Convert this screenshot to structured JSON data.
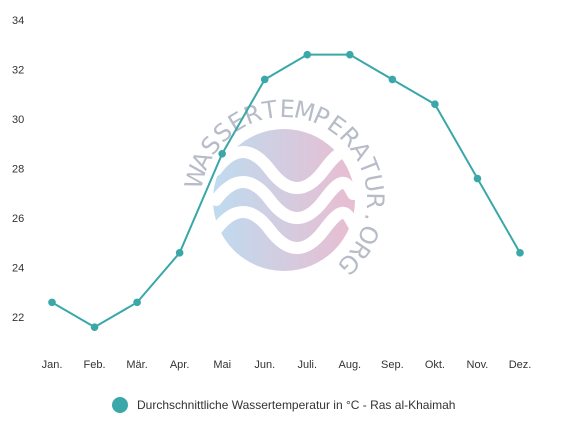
{
  "chart_data": {
    "type": "line",
    "categories": [
      "Jan.",
      "Feb.",
      "Mär.",
      "Apr.",
      "Mai",
      "Jun.",
      "Juli.",
      "Aug.",
      "Sep.",
      "Okt.",
      "Nov.",
      "Dez."
    ],
    "series": [
      {
        "name": "Durchschnittliche Wassertemperatur in °C - Ras al-Khaimah",
        "values": [
          22.6,
          21.6,
          22.6,
          24.6,
          28.6,
          31.6,
          32.6,
          32.6,
          31.6,
          30.6,
          27.6,
          24.6
        ],
        "color": "#3aa7a8"
      }
    ],
    "y_ticks": [
      "22",
      "24",
      "26",
      "28",
      "30",
      "32",
      "34"
    ],
    "ylim": [
      21,
      34
    ],
    "grid": false,
    "legend_position": "bottom-center",
    "watermark_text": "WASSERTEMPERATUR.ORG"
  }
}
